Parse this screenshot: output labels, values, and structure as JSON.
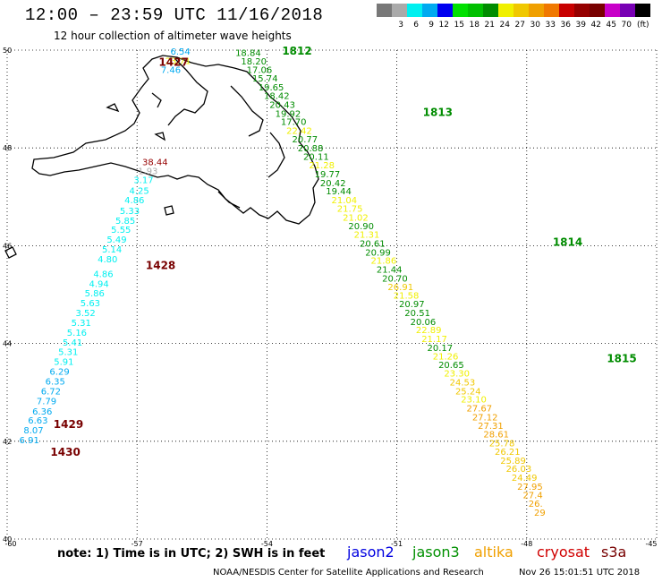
{
  "header": {
    "title": "12:00 – 23:59 UTC 11/16/2018",
    "subtitle": "12 hour collection of altimeter wave heights"
  },
  "legend": {
    "unit": "(ft)",
    "items": [
      {
        "label": "",
        "color": "#787878"
      },
      {
        "label": "3",
        "color": "#aaaaaa"
      },
      {
        "label": "6",
        "color": "#00f0f0"
      },
      {
        "label": "9",
        "color": "#00aaf0"
      },
      {
        "label": "12",
        "color": "#0000f0"
      },
      {
        "label": "15",
        "color": "#00e000"
      },
      {
        "label": "18",
        "color": "#00c000"
      },
      {
        "label": "21",
        "color": "#008c00"
      },
      {
        "label": "24",
        "color": "#f0f000"
      },
      {
        "label": "27",
        "color": "#f0c800"
      },
      {
        "label": "30",
        "color": "#f0a000"
      },
      {
        "label": "33",
        "color": "#f07800"
      },
      {
        "label": "36",
        "color": "#c80000"
      },
      {
        "label": "39",
        "color": "#960000"
      },
      {
        "label": "42",
        "color": "#780000"
      },
      {
        "label": "45",
        "color": "#c800c8"
      },
      {
        "label": "70",
        "color": "#7800b4"
      },
      {
        "label": "",
        "color": "#000000"
      }
    ]
  },
  "map": {
    "lon_range": [
      -60,
      -45
    ],
    "lat_range": [
      40,
      50
    ],
    "lon_ticks": [
      {
        "lon": -60,
        "label": "-60"
      },
      {
        "lon": -57,
        "label": "-57"
      },
      {
        "lon": -54,
        "label": "-54"
      },
      {
        "lon": -51,
        "label": "-51"
      },
      {
        "lon": -48,
        "label": "-48"
      },
      {
        "lon": -45,
        "label": "-45"
      }
    ],
    "lat_ticks": [
      {
        "lat": 50,
        "label": "50"
      },
      {
        "lat": 48,
        "label": "48"
      },
      {
        "lat": 46,
        "label": "46"
      },
      {
        "lat": 44,
        "label": "44"
      },
      {
        "lat": 42,
        "label": "42"
      },
      {
        "lat": 40,
        "label": "40"
      }
    ],
    "grid": "dotted",
    "track_a": {
      "times": [
        {
          "label": "1812",
          "lon": -53.65,
          "lat": 49.91,
          "color": "#008c00"
        },
        {
          "label": "1813",
          "lon": -50.4,
          "lat": 48.65,
          "color": "#008c00"
        },
        {
          "label": "1814",
          "lon": -47.4,
          "lat": 46.0,
          "color": "#008c00"
        },
        {
          "label": "1815",
          "lon": -46.15,
          "lat": 43.62,
          "color": "#008c00"
        }
      ],
      "points": [
        {
          "v": "18.84",
          "lon": -54.73,
          "lat": 49.88,
          "color": "#008c00"
        },
        {
          "v": "18.20",
          "lon": -54.6,
          "lat": 49.71,
          "color": "#008c00"
        },
        {
          "v": "17.06",
          "lon": -54.47,
          "lat": 49.53,
          "color": "#008c00"
        },
        {
          "v": "15.74",
          "lon": -54.34,
          "lat": 49.36,
          "color": "#008c00"
        },
        {
          "v": "19.65",
          "lon": -54.2,
          "lat": 49.18,
          "color": "#008c00"
        },
        {
          "v": "18.42",
          "lon": -54.07,
          "lat": 49.0,
          "color": "#008c00"
        },
        {
          "v": "20.43",
          "lon": -53.94,
          "lat": 48.82,
          "color": "#008c00"
        },
        {
          "v": "19.92",
          "lon": -53.81,
          "lat": 48.64,
          "color": "#008c00"
        },
        {
          "v": "17.70",
          "lon": -53.68,
          "lat": 48.47,
          "color": "#008c00"
        },
        {
          "v": "22.42",
          "lon": -53.55,
          "lat": 48.29,
          "color": "#f0f000"
        },
        {
          "v": "20.77",
          "lon": -53.42,
          "lat": 48.11,
          "color": "#008c00"
        },
        {
          "v": "20.88",
          "lon": -53.29,
          "lat": 47.93,
          "color": "#008c00"
        },
        {
          "v": "20.11",
          "lon": -53.16,
          "lat": 47.76,
          "color": "#008c00"
        },
        {
          "v": "21.28",
          "lon": -53.03,
          "lat": 47.58,
          "color": "#f0f000"
        },
        {
          "v": "19.77",
          "lon": -52.9,
          "lat": 47.4,
          "color": "#008c00"
        },
        {
          "v": "20.42",
          "lon": -52.77,
          "lat": 47.22,
          "color": "#008c00"
        },
        {
          "v": "19.44",
          "lon": -52.64,
          "lat": 47.05,
          "color": "#008c00"
        },
        {
          "v": "21.04",
          "lon": -52.51,
          "lat": 46.87,
          "color": "#f0f000"
        },
        {
          "v": "21.75",
          "lon": -52.38,
          "lat": 46.69,
          "color": "#f0f000"
        },
        {
          "v": "21.02",
          "lon": -52.25,
          "lat": 46.51,
          "color": "#f0f000"
        },
        {
          "v": "20.90",
          "lon": -52.12,
          "lat": 46.34,
          "color": "#008c00"
        },
        {
          "v": "21.31",
          "lon": -51.99,
          "lat": 46.16,
          "color": "#f0f000"
        },
        {
          "v": "20.61",
          "lon": -51.86,
          "lat": 45.98,
          "color": "#008c00"
        },
        {
          "v": "20.99",
          "lon": -51.73,
          "lat": 45.8,
          "color": "#008c00"
        },
        {
          "v": "21.86",
          "lon": -51.6,
          "lat": 45.63,
          "color": "#f0f000"
        },
        {
          "v": "21.44",
          "lon": -51.47,
          "lat": 45.45,
          "color": "#008c00"
        },
        {
          "v": "20.70",
          "lon": -51.34,
          "lat": 45.27,
          "color": "#008c00"
        },
        {
          "v": "26.91",
          "lon": -51.21,
          "lat": 45.09,
          "color": "#f0c800"
        },
        {
          "v": "21.58",
          "lon": -51.08,
          "lat": 44.92,
          "color": "#f0f000"
        },
        {
          "v": "20.97",
          "lon": -50.95,
          "lat": 44.74,
          "color": "#008c00"
        },
        {
          "v": "20.51",
          "lon": -50.82,
          "lat": 44.56,
          "color": "#008c00"
        },
        {
          "v": "20.06",
          "lon": -50.69,
          "lat": 44.38,
          "color": "#008c00"
        },
        {
          "v": "22.89",
          "lon": -50.56,
          "lat": 44.21,
          "color": "#f0f000"
        },
        {
          "v": "21.17",
          "lon": -50.43,
          "lat": 44.03,
          "color": "#f0f000"
        },
        {
          "v": "20.17",
          "lon": -50.3,
          "lat": 43.85,
          "color": "#008c00"
        },
        {
          "v": "21.26",
          "lon": -50.17,
          "lat": 43.67,
          "color": "#f0f000"
        },
        {
          "v": "20.65",
          "lon": -50.04,
          "lat": 43.5,
          "color": "#008c00"
        },
        {
          "v": "23.30",
          "lon": -49.91,
          "lat": 43.32,
          "color": "#f0f000"
        },
        {
          "v": "24.53",
          "lon": -49.78,
          "lat": 43.14,
          "color": "#f0c800"
        },
        {
          "v": "25.24",
          "lon": -49.65,
          "lat": 42.96,
          "color": "#f0c800"
        },
        {
          "v": "23.10",
          "lon": -49.52,
          "lat": 42.79,
          "color": "#f0f000"
        },
        {
          "v": "27.67",
          "lon": -49.39,
          "lat": 42.61,
          "color": "#f0a000"
        },
        {
          "v": "27.12",
          "lon": -49.26,
          "lat": 42.43,
          "color": "#f0a000"
        },
        {
          "v": "27.31",
          "lon": -49.13,
          "lat": 42.25,
          "color": "#f0a000"
        },
        {
          "v": "28.61",
          "lon": -49.0,
          "lat": 42.08,
          "color": "#f0a000"
        },
        {
          "v": "25.78",
          "lon": -48.87,
          "lat": 41.9,
          "color": "#f0c800"
        },
        {
          "v": "26.21",
          "lon": -48.74,
          "lat": 41.72,
          "color": "#f0c800"
        },
        {
          "v": "25.89",
          "lon": -48.61,
          "lat": 41.54,
          "color": "#f0c800"
        },
        {
          "v": "26.03",
          "lon": -48.48,
          "lat": 41.37,
          "color": "#f0c800"
        },
        {
          "v": "24.49",
          "lon": -48.35,
          "lat": 41.19,
          "color": "#f0c800"
        },
        {
          "v": "27.95",
          "lon": -48.22,
          "lat": 41.01,
          "color": "#f0a000"
        },
        {
          "v": "27.4",
          "lon": -48.09,
          "lat": 40.83,
          "color": "#f0a000"
        },
        {
          "v": "26.",
          "lon": -47.96,
          "lat": 40.66,
          "color": "#f0a000"
        },
        {
          "v": "29",
          "lon": -47.83,
          "lat": 40.48,
          "color": "#f0a000"
        }
      ]
    },
    "track_b": {
      "times": [
        {
          "label": "1427",
          "lon": -56.5,
          "lat": 49.68,
          "color": "#780000"
        },
        {
          "label": "1428",
          "lon": -56.8,
          "lat": 45.52,
          "color": "#780000"
        },
        {
          "label": "1429",
          "lon": -58.93,
          "lat": 42.27,
          "color": "#780000"
        },
        {
          "label": "1430",
          "lon": -59.0,
          "lat": 41.7,
          "color": "#780000"
        }
      ],
      "points": [
        {
          "v": "6.54",
          "lon": -56.23,
          "lat": 49.91,
          "color": "#00aaf0"
        },
        {
          "v": "23.71",
          "lon": -56.35,
          "lat": 49.72,
          "color": "#f0f000"
        },
        {
          "v": "7.46",
          "lon": -56.45,
          "lat": 49.53,
          "color": "#00aaf0"
        },
        {
          "v": "38.44",
          "lon": -56.88,
          "lat": 47.65,
          "color": "#960000"
        },
        {
          "v": "1.93",
          "lon": -56.98,
          "lat": 47.46,
          "color": "#aaaaaa"
        },
        {
          "v": "3.17",
          "lon": -57.08,
          "lat": 47.28,
          "color": "#00f0f0"
        },
        {
          "v": "4.25",
          "lon": -57.18,
          "lat": 47.06,
          "color": "#00f0f0"
        },
        {
          "v": "4.86",
          "lon": -57.29,
          "lat": 46.87,
          "color": "#00f0f0"
        },
        {
          "v": "5.33",
          "lon": -57.4,
          "lat": 46.65,
          "color": "#00f0f0"
        },
        {
          "v": "5.85",
          "lon": -57.5,
          "lat": 46.45,
          "color": "#00f0f0"
        },
        {
          "v": "5.55",
          "lon": -57.6,
          "lat": 46.26,
          "color": "#00f0f0"
        },
        {
          "v": "5.49",
          "lon": -57.7,
          "lat": 46.06,
          "color": "#00f0f0"
        },
        {
          "v": "5.14",
          "lon": -57.81,
          "lat": 45.86,
          "color": "#00f0f0"
        },
        {
          "v": "4.80",
          "lon": -57.91,
          "lat": 45.66,
          "color": "#00f0f0"
        },
        {
          "v": "4.86",
          "lon": -58.01,
          "lat": 45.36,
          "color": "#00f0f0"
        },
        {
          "v": "4.94",
          "lon": -58.11,
          "lat": 45.16,
          "color": "#00f0f0"
        },
        {
          "v": "5.86",
          "lon": -58.21,
          "lat": 44.96,
          "color": "#00f0f0"
        },
        {
          "v": "5.63",
          "lon": -58.31,
          "lat": 44.76,
          "color": "#00f0f0"
        },
        {
          "v": "3.52",
          "lon": -58.42,
          "lat": 44.56,
          "color": "#00f0f0"
        },
        {
          "v": "5.31",
          "lon": -58.52,
          "lat": 44.36,
          "color": "#00f0f0"
        },
        {
          "v": "5.16",
          "lon": -58.62,
          "lat": 44.16,
          "color": "#00f0f0"
        },
        {
          "v": "5.41",
          "lon": -58.72,
          "lat": 43.96,
          "color": "#00f0f0"
        },
        {
          "v": "5.31",
          "lon": -58.82,
          "lat": 43.76,
          "color": "#00f0f0"
        },
        {
          "v": "5.91",
          "lon": -58.92,
          "lat": 43.56,
          "color": "#00f0f0"
        },
        {
          "v": "6.29",
          "lon": -59.02,
          "lat": 43.36,
          "color": "#00aaf0"
        },
        {
          "v": "6.35",
          "lon": -59.12,
          "lat": 43.16,
          "color": "#00aaf0"
        },
        {
          "v": "6.72",
          "lon": -59.22,
          "lat": 42.96,
          "color": "#00aaf0"
        },
        {
          "v": "7.79",
          "lon": -59.32,
          "lat": 42.76,
          "color": "#00aaf0"
        },
        {
          "v": "6.36",
          "lon": -59.42,
          "lat": 42.55,
          "color": "#00aaf0"
        },
        {
          "v": "6.63",
          "lon": -59.52,
          "lat": 42.36,
          "color": "#00aaf0"
        },
        {
          "v": "8.07",
          "lon": -59.62,
          "lat": 42.16,
          "color": "#00aaf0"
        },
        {
          "v": "6.91",
          "lon": -59.72,
          "lat": 41.96,
          "color": "#00aaf0"
        }
      ]
    }
  },
  "footer": {
    "note": "note: 1) Time is in UTC; 2) SWH is in feet",
    "satellites": [
      {
        "name": "jason2",
        "color": "#0000e0"
      },
      {
        "name": "jason3",
        "color": "#009000"
      },
      {
        "name": "altika",
        "color": "#f0a000"
      },
      {
        "name": "cryosat",
        "color": "#d00000"
      },
      {
        "name": "s3a",
        "color": "#780000"
      }
    ],
    "credit": "NOAA/NESDIS Center for Satellite Applications and Research",
    "timestamp": "Nov 26 15:01:51 UTC 2018"
  }
}
